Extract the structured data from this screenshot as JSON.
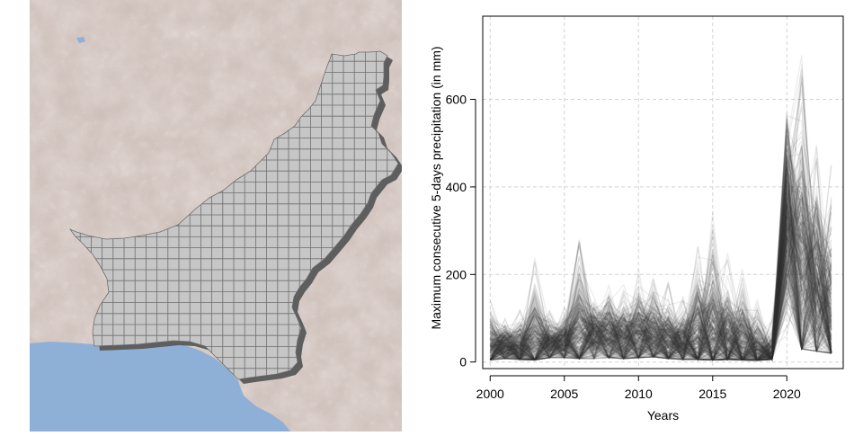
{
  "map": {
    "colors": {
      "land": "#dcd0cc",
      "sea": "#8fb0d6",
      "country_fill": "#c6c6c6",
      "grid_line": "#6e6e6e",
      "shadow": "#5e5e5e",
      "relief": "#b59e93"
    }
  },
  "chart_data": {
    "type": "line",
    "title": "",
    "xlabel": "Years",
    "ylabel": "Maximum consecutive 5-days precipitation (in mm)",
    "xlim": [
      1999.5,
      2023.8
    ],
    "ylim": [
      -15,
      790
    ],
    "xticks": [
      2000,
      2005,
      2010,
      2015,
      2020
    ],
    "yticks": [
      0,
      200,
      400,
      600
    ],
    "x": [
      2000,
      2001,
      2002,
      2003,
      2004,
      2005,
      2006,
      2007,
      2008,
      2009,
      2010,
      2011,
      2012,
      2013,
      2014,
      2015,
      2016,
      2017,
      2018,
      2019,
      2020,
      2021,
      2022,
      2023
    ],
    "grid": true,
    "legend": "none",
    "line_color": "#333333",
    "series_count": 350,
    "series_summary": [
      {
        "stat": "low",
        "values": [
          5,
          8,
          6,
          5,
          10,
          10,
          8,
          8,
          10,
          8,
          10,
          12,
          8,
          6,
          6,
          5,
          6,
          5,
          4,
          6,
          60,
          30,
          25,
          20
        ]
      },
      {
        "stat": "typical",
        "values": [
          30,
          35,
          30,
          40,
          38,
          42,
          55,
          60,
          55,
          50,
          60,
          55,
          45,
          40,
          45,
          45,
          40,
          30,
          20,
          15,
          320,
          180,
          150,
          100
        ]
      },
      {
        "stat": "high",
        "values": [
          150,
          100,
          120,
          260,
          120,
          130,
          290,
          150,
          200,
          180,
          220,
          200,
          190,
          150,
          300,
          350,
          250,
          220,
          150,
          100,
          570,
          760,
          500,
          480
        ]
      }
    ]
  }
}
